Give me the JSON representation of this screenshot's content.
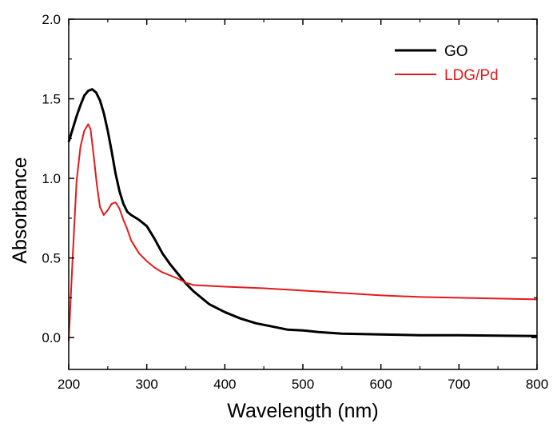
{
  "chart_data": {
    "type": "line",
    "title": "",
    "xlabel": "Wavelength (nm)",
    "ylabel": "Absorbance",
    "xlim": [
      200,
      800
    ],
    "ylim": [
      -0.2,
      2.0
    ],
    "x_ticks": [
      "200",
      "300",
      "400",
      "500",
      "600",
      "700",
      "800"
    ],
    "y_ticks": [
      "0.0",
      "0.5",
      "1.0",
      "1.5",
      "2.0"
    ],
    "grid": false,
    "legend_position": "top-right",
    "series": [
      {
        "name": "GO",
        "color": "#000000",
        "x": [
          200,
          205,
          210,
          215,
          220,
          225,
          230,
          235,
          240,
          245,
          250,
          255,
          260,
          265,
          270,
          275,
          280,
          290,
          300,
          310,
          320,
          330,
          340,
          350,
          360,
          370,
          380,
          400,
          420,
          440,
          460,
          480,
          500,
          520,
          550,
          600,
          650,
          700,
          750,
          800
        ],
        "y": [
          1.23,
          1.31,
          1.39,
          1.46,
          1.52,
          1.55,
          1.56,
          1.54,
          1.49,
          1.41,
          1.3,
          1.17,
          1.03,
          0.92,
          0.84,
          0.79,
          0.77,
          0.74,
          0.7,
          0.62,
          0.53,
          0.46,
          0.4,
          0.34,
          0.29,
          0.25,
          0.21,
          0.16,
          0.12,
          0.09,
          0.07,
          0.05,
          0.045,
          0.035,
          0.025,
          0.02,
          0.015,
          0.015,
          0.012,
          0.01
        ]
      },
      {
        "name": "LDG/Pd",
        "color": "#e31a1c",
        "x": [
          200,
          205,
          210,
          215,
          220,
          225,
          228,
          232,
          236,
          240,
          245,
          250,
          255,
          260,
          265,
          270,
          275,
          280,
          290,
          300,
          310,
          320,
          330,
          340,
          350,
          360,
          380,
          400,
          450,
          500,
          550,
          600,
          650,
          700,
          750,
          800
        ],
        "y": [
          -0.02,
          0.5,
          0.98,
          1.2,
          1.3,
          1.34,
          1.31,
          1.14,
          0.96,
          0.82,
          0.77,
          0.8,
          0.84,
          0.85,
          0.81,
          0.74,
          0.68,
          0.61,
          0.53,
          0.48,
          0.44,
          0.41,
          0.39,
          0.37,
          0.345,
          0.33,
          0.325,
          0.32,
          0.31,
          0.295,
          0.28,
          0.265,
          0.255,
          0.25,
          0.245,
          0.24
        ]
      }
    ]
  }
}
